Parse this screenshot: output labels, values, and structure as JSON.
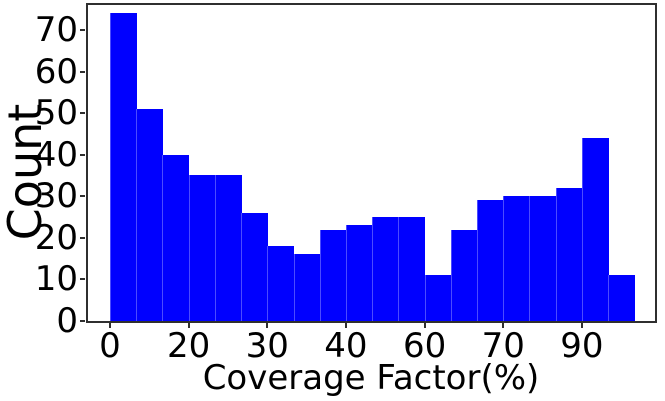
{
  "chart_data": {
    "type": "bar",
    "variant": "histogram",
    "title": "",
    "xlabel": "Coverage Factor(%)",
    "ylabel": "Count",
    "n_bins": 20,
    "values": [
      74,
      51,
      40,
      35,
      35,
      26,
      18,
      16,
      22,
      23,
      25,
      25,
      11,
      22,
      29,
      30,
      30,
      32,
      44,
      11
    ],
    "x_ticks": {
      "labels": [
        "0",
        "20",
        "30",
        "40",
        "60",
        "70",
        "90"
      ],
      "boundary_indices": [
        0,
        3,
        6,
        9,
        12,
        15,
        18
      ]
    },
    "y_ticks": [
      "0",
      "10",
      "20",
      "30",
      "40",
      "50",
      "60",
      "70"
    ],
    "ylim": [
      0,
      76
    ],
    "bar_color": "#0000ff",
    "grid": "off",
    "legend": "none"
  }
}
